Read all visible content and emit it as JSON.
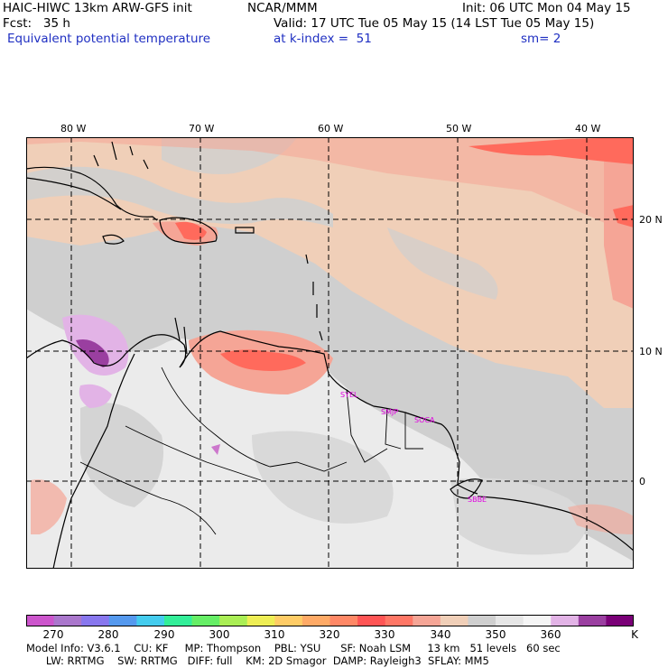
{
  "header": {
    "model_title": "HAIC-HIWC 13km ARW-GFS init",
    "org": "NCAR/MMM",
    "init": "Init: 06 UTC Mon 04 May 15",
    "fcst": "Fcst:   35 h",
    "valid": "Valid: 17 UTC Tue 05 May 15 (14 LST Tue 05 May 15)",
    "field": "Equivalent potential temperature",
    "level": "at k-index =  51",
    "smoothing": "sm= 2"
  },
  "map": {
    "lon_labels": [
      "80 W",
      "70 W",
      "60 W",
      "50 W",
      "40 W"
    ],
    "lat_labels": [
      "20 N",
      "10 N",
      "0"
    ],
    "stations": [
      "SYEL",
      "SMJP",
      "SOCA",
      "SBBE"
    ],
    "colors": {
      "land_light": "#ebebeb",
      "gray": "#cfcfcf",
      "tan": "#f0cfb8",
      "salmon": "#f5a596",
      "red": "#ff6a5c",
      "lavender": "#e2b3e6",
      "magenta": "#cc77cc",
      "purple": "#9a3fa0"
    }
  },
  "colorbar": {
    "labels": [
      "270",
      "280",
      "290",
      "300",
      "310",
      "320",
      "330",
      "340",
      "350",
      "360",
      "K"
    ],
    "colors": [
      "#cc55cc",
      "#aa77cc",
      "#8877ee",
      "#5599ee",
      "#44ccee",
      "#33ee99",
      "#66ee66",
      "#aaee55",
      "#eeee55",
      "#ffcc66",
      "#ffaa66",
      "#ff8866",
      "#ff5555",
      "#ff7766",
      "#f5a596",
      "#f0cfb8",
      "#cfcfcf",
      "#e6e6e6",
      "#f5f5f5",
      "#e2b3e6",
      "#9a3fa0",
      "#7a0077"
    ]
  },
  "footer": {
    "line1": "Model Info: V3.6.1    CU: KF     MP: Thompson    PBL: YSU      SF: Noah LSM     13 km   51 levels   60 sec",
    "line2": "      LW: RRTMG    SW: RRTMG   DIFF: full    KM: 2D Smagor  DAMP: Rayleigh3  SFLAY: MM5"
  }
}
